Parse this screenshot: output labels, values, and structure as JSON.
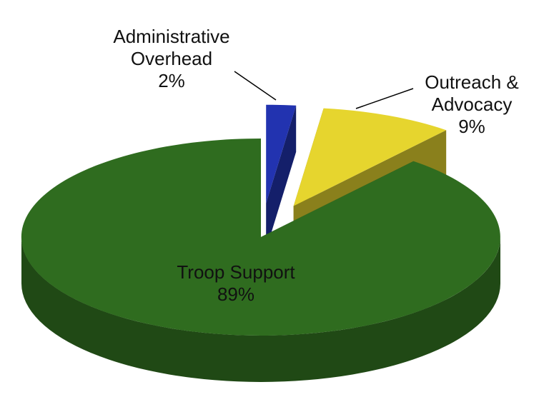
{
  "chart_data": {
    "type": "pie",
    "categories": [
      "Administrative Overhead",
      "Outreach & Advocacy",
      "Troop Support"
    ],
    "values": [
      2,
      9,
      89
    ],
    "value_labels": [
      "2%",
      "9%",
      "89%"
    ],
    "colors": [
      "#2233b0",
      "#e6d52e",
      "#2f6c1f"
    ]
  }
}
